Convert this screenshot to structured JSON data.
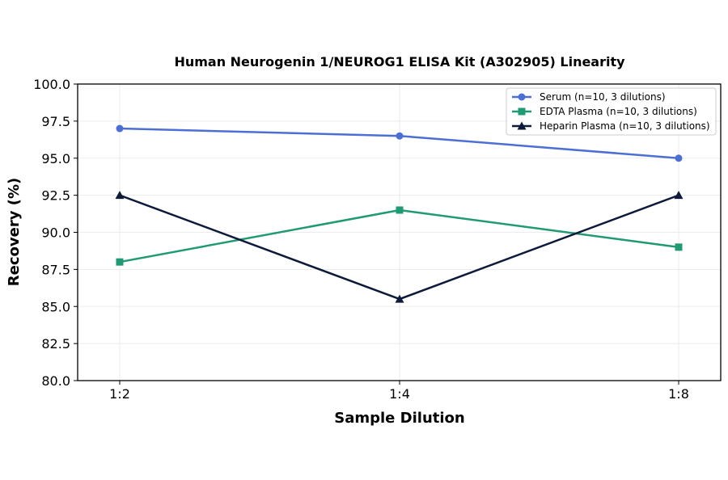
{
  "chart_data": {
    "type": "line",
    "title": "Human Neurogenin 1/NEUROG1 ELISA Kit (A302905) Linearity",
    "xlabel": "Sample Dilution",
    "ylabel": "Recovery (%)",
    "categories": [
      "1:2",
      "1:4",
      "1:8"
    ],
    "ylim": [
      80.0,
      100.0
    ],
    "yticks": [
      "80.0",
      "82.5",
      "85.0",
      "87.5",
      "90.0",
      "92.5",
      "95.0",
      "97.5",
      "100.0"
    ],
    "grid": true,
    "legend_position": "top-right",
    "series": [
      {
        "name": "Serum (n=10, 3 dilutions)",
        "values": [
          97.0,
          96.5,
          95.0
        ],
        "color": "#4c6fd6",
        "marker": "circle"
      },
      {
        "name": "EDTA Plasma (n=10, 3 dilutions)",
        "values": [
          88.0,
          91.5,
          89.0
        ],
        "color": "#1f9a72",
        "marker": "square"
      },
      {
        "name": "Heparin Plasma (n=10, 3 dilutions)",
        "values": [
          92.5,
          85.5,
          92.5
        ],
        "color": "#0d1a3a",
        "marker": "triangle"
      }
    ]
  }
}
